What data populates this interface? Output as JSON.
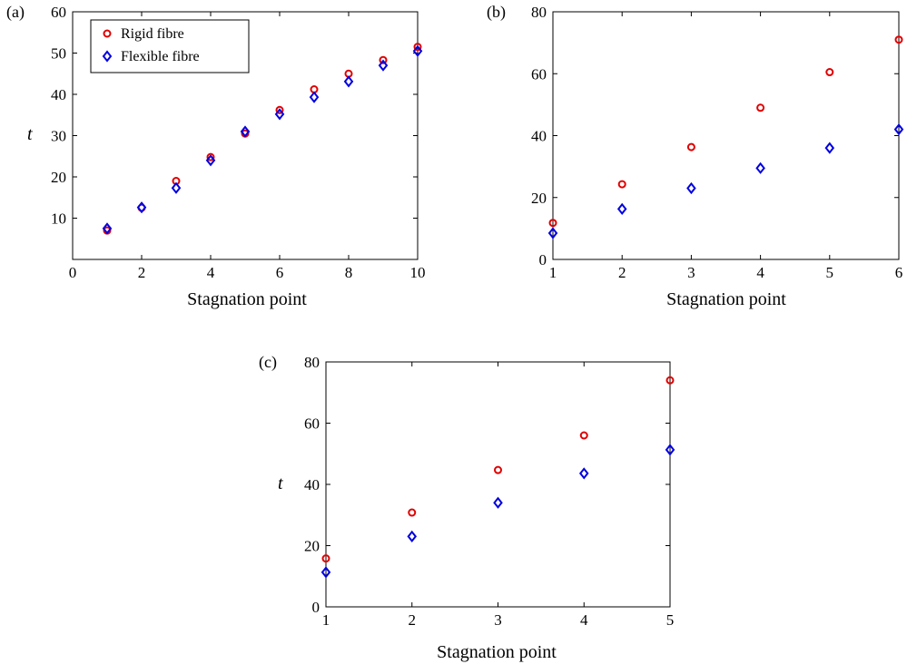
{
  "series_styles": {
    "rigid": {
      "color": "#e00000",
      "marker": "circle"
    },
    "flexible": {
      "color": "#0000e0",
      "marker": "diamond"
    }
  },
  "chart_data": [
    {
      "type": "scatter",
      "panel_label": "(a)",
      "xlabel": "Stagnation point",
      "ylabel": "t",
      "xlim": [
        0,
        10
      ],
      "ylim": [
        0,
        60
      ],
      "xticks": [
        0,
        2,
        4,
        6,
        8,
        10
      ],
      "yticks": [
        10,
        20,
        30,
        40,
        50,
        60
      ],
      "grid": false,
      "legend": "top-left",
      "series": [
        {
          "name": "Rigid fibre",
          "style": "rigid",
          "x": [
            1,
            2,
            3,
            4,
            5,
            6,
            7,
            8,
            9,
            10
          ],
          "y": [
            7,
            12.5,
            19,
            24.8,
            30.5,
            36.2,
            41.2,
            45,
            48.3,
            51.5
          ]
        },
        {
          "name": "Flexible fibre",
          "style": "flexible",
          "x": [
            1,
            2,
            3,
            4,
            5,
            6,
            7,
            8,
            9,
            10
          ],
          "y": [
            7.5,
            12.6,
            17.3,
            24,
            31,
            35.2,
            39.3,
            43.1,
            47,
            50.5
          ]
        }
      ]
    },
    {
      "type": "scatter",
      "panel_label": "(b)",
      "xlabel": "Stagnation point",
      "ylabel": "",
      "xlim": [
        1,
        6
      ],
      "ylim": [
        0,
        80
      ],
      "xticks": [
        1,
        2,
        3,
        4,
        5,
        6
      ],
      "yticks": [
        0,
        20,
        40,
        60,
        80
      ],
      "grid": false,
      "series": [
        {
          "style": "rigid",
          "x": [
            1,
            2,
            3,
            4,
            5,
            6
          ],
          "y": [
            11.8,
            24.3,
            36.3,
            49,
            60.5,
            71
          ]
        },
        {
          "style": "flexible",
          "x": [
            1,
            2,
            3,
            4,
            5,
            6
          ],
          "y": [
            8.5,
            16.3,
            23,
            29.5,
            36,
            42
          ]
        }
      ]
    },
    {
      "type": "scatter",
      "panel_label": "(c)",
      "xlabel": "Stagnation point",
      "ylabel": "t",
      "xlim": [
        1,
        5
      ],
      "ylim": [
        0,
        80
      ],
      "xticks": [
        1,
        2,
        3,
        4,
        5
      ],
      "yticks": [
        0,
        20,
        40,
        60,
        80
      ],
      "grid": false,
      "series": [
        {
          "style": "rigid",
          "x": [
            1,
            2,
            3,
            4,
            5
          ],
          "y": [
            15.8,
            30.8,
            44.7,
            56,
            74
          ]
        },
        {
          "style": "flexible",
          "x": [
            1,
            2,
            3,
            4,
            5
          ],
          "y": [
            11.3,
            23,
            34,
            43.6,
            51.3
          ]
        }
      ]
    }
  ]
}
